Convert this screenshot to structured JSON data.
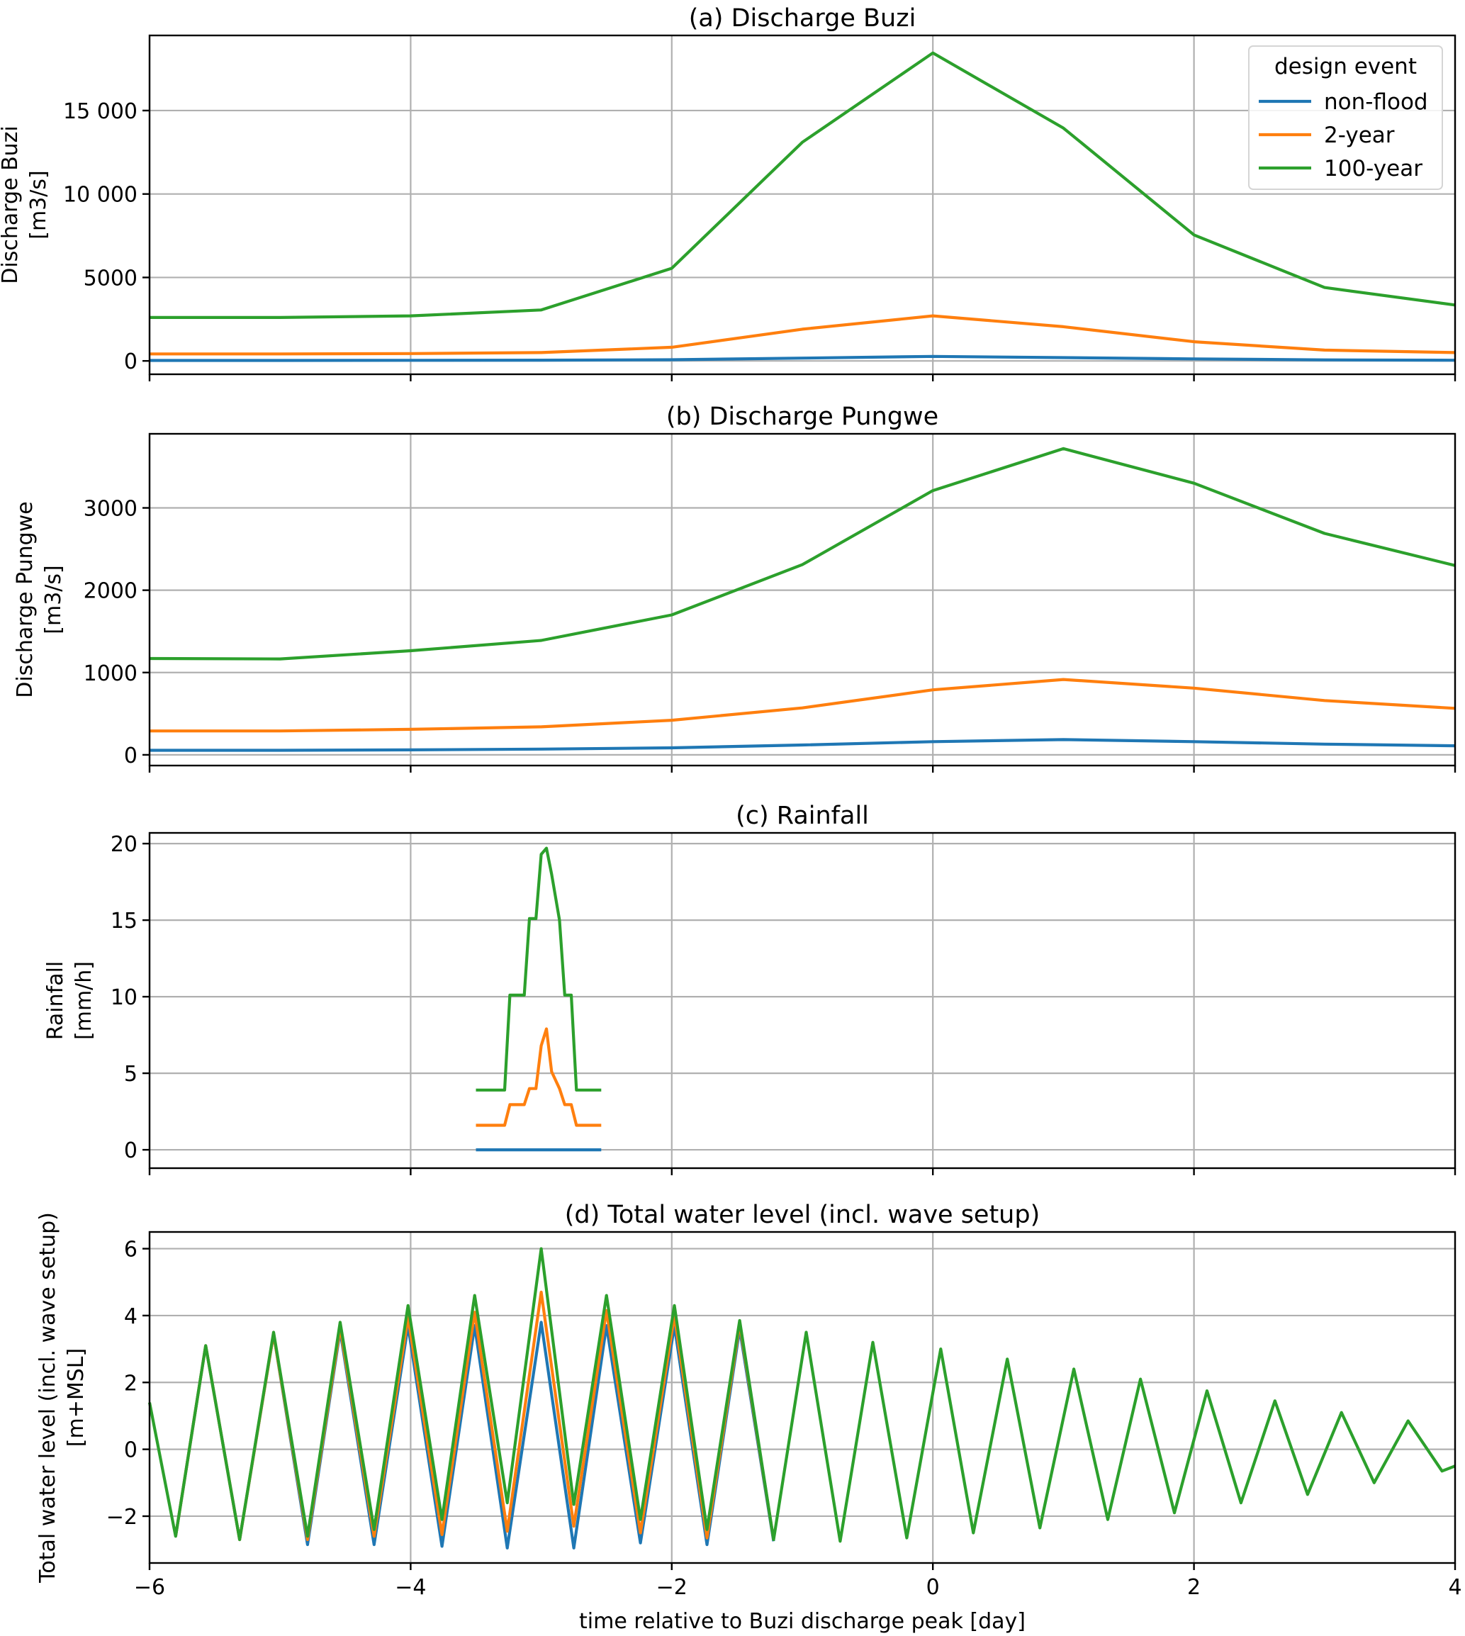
{
  "chart_data": [
    {
      "type": "line",
      "title": "(a) Discharge Buzi",
      "ylabel": "Discharge Buzi\n[m3/s]",
      "xlim": [
        -6,
        4
      ],
      "ylim": [
        -800,
        19500
      ],
      "yticks": [
        0,
        5000,
        10000,
        15000
      ],
      "ytick_labels": [
        "0",
        "5000",
        "10 000",
        "15 000"
      ],
      "xticks": [
        -6,
        -4,
        -2,
        0,
        2,
        4
      ],
      "grid": true,
      "legend": {
        "title": "design event",
        "location": "upper right",
        "entries": [
          "non-flood",
          "2-year",
          "100-year"
        ]
      },
      "series": [
        {
          "name": "non-flood",
          "color": "#1f77b4",
          "x": [
            -6,
            -5,
            -4,
            -3,
            -2,
            -1,
            0,
            1,
            2,
            3,
            4
          ],
          "y": [
            30,
            30,
            35,
            45,
            70,
            170,
            270,
            200,
            120,
            60,
            40
          ]
        },
        {
          "name": "2-year",
          "color": "#ff7f0e",
          "x": [
            -6,
            -5,
            -4,
            -3,
            -2,
            -1,
            0,
            1,
            2,
            3,
            4
          ],
          "y": [
            420,
            420,
            440,
            500,
            820,
            1900,
            2700,
            2050,
            1150,
            650,
            500
          ]
        },
        {
          "name": "100-year",
          "color": "#2ca02c",
          "x": [
            -6,
            -5,
            -4,
            -3,
            -2,
            -1,
            0,
            1,
            2,
            3,
            4
          ],
          "y": [
            2600,
            2600,
            2700,
            3050,
            5550,
            13100,
            18450,
            13950,
            7550,
            4400,
            3350
          ]
        }
      ]
    },
    {
      "type": "line",
      "title": "(b) Discharge Pungwe",
      "ylabel": "Discharge Pungwe\n[m3/s]",
      "xlim": [
        -6,
        4
      ],
      "ylim": [
        -130,
        3900
      ],
      "yticks": [
        0,
        1000,
        2000,
        3000
      ],
      "ytick_labels": [
        "0",
        "1000",
        "2000",
        "3000"
      ],
      "xticks": [
        -6,
        -4,
        -2,
        0,
        2,
        4
      ],
      "grid": true,
      "series": [
        {
          "name": "non-flood",
          "color": "#1f77b4",
          "x": [
            -6,
            -5,
            -4,
            -3,
            -2,
            -1,
            0,
            1,
            2,
            3,
            4
          ],
          "y": [
            55,
            55,
            60,
            70,
            85,
            120,
            160,
            185,
            160,
            130,
            110
          ]
        },
        {
          "name": "2-year",
          "color": "#ff7f0e",
          "x": [
            -6,
            -5,
            -4,
            -3,
            -2,
            -1,
            0,
            1,
            2,
            3,
            4
          ],
          "y": [
            290,
            290,
            310,
            340,
            420,
            570,
            790,
            915,
            810,
            660,
            565
          ]
        },
        {
          "name": "100-year",
          "color": "#2ca02c",
          "x": [
            -6,
            -5,
            -4,
            -3,
            -2,
            -1,
            0,
            1,
            2,
            3,
            4
          ],
          "y": [
            1170,
            1165,
            1265,
            1390,
            1700,
            2310,
            3210,
            3720,
            3300,
            2690,
            2300
          ]
        }
      ]
    },
    {
      "type": "line",
      "title": "(c) Rainfall",
      "ylabel": "Rainfall\n[mm/h]",
      "xlim": [
        -6,
        4
      ],
      "ylim": [
        -1.2,
        20.7
      ],
      "yticks": [
        0,
        5,
        10,
        15,
        20
      ],
      "ytick_labels": [
        "0",
        "5",
        "10",
        "15",
        "20"
      ],
      "xticks": [
        -6,
        -4,
        -2,
        0,
        2,
        4
      ],
      "grid": true,
      "series": [
        {
          "name": "non-flood",
          "color": "#1f77b4",
          "x": [
            -3.5,
            -2.54
          ],
          "y": [
            0,
            0
          ]
        },
        {
          "name": "2-year",
          "color": "#ff7f0e",
          "x": [
            -3.5,
            -3.28,
            -3.24,
            -3.13,
            -3.09,
            -3.04,
            -3.0,
            -2.96,
            -2.92,
            -2.86,
            -2.82,
            -2.77,
            -2.73,
            -2.54
          ],
          "y": [
            1.6,
            1.6,
            2.95,
            2.95,
            4.0,
            4.0,
            6.8,
            7.9,
            5.1,
            4.0,
            2.95,
            2.95,
            1.6,
            1.6
          ]
        },
        {
          "name": "100-year",
          "color": "#2ca02c",
          "x": [
            -3.5,
            -3.28,
            -3.24,
            -3.13,
            -3.09,
            -3.04,
            -3.0,
            -2.96,
            -2.92,
            -2.86,
            -2.82,
            -2.77,
            -2.73,
            -2.54
          ],
          "y": [
            3.9,
            3.9,
            10.1,
            10.1,
            15.1,
            15.1,
            19.3,
            19.7,
            18.0,
            15.0,
            10.1,
            10.1,
            3.9,
            3.9
          ]
        }
      ]
    },
    {
      "type": "line",
      "title": "(d) Total water level (incl. wave setup)",
      "ylabel": "Total water level (incl. wave setup)\n[m+MSL]",
      "xlabel": "time relative to Buzi discharge peak [day]",
      "xlim": [
        -6,
        4
      ],
      "ylim": [
        -3.4,
        6.5
      ],
      "yticks": [
        -2,
        0,
        2,
        4,
        6
      ],
      "ytick_labels": [
        "−2",
        "0",
        "2",
        "4",
        "6"
      ],
      "xticks": [
        -6,
        -4,
        -2,
        0,
        2,
        4
      ],
      "xtick_labels": [
        "−6",
        "−4",
        "−2",
        "0",
        "2",
        "4"
      ],
      "grid": true,
      "series": [
        {
          "name": "non-flood",
          "color": "#1f77b4",
          "x": [
            -5.8,
            -5.57,
            -5.31,
            -5.05,
            -4.79,
            -4.54,
            -4.28,
            -4.02,
            -3.76,
            -3.51,
            -3.26,
            -3.0,
            -2.75,
            -2.5,
            -2.24,
            -1.98,
            -1.73,
            -1.48,
            -1.22
          ],
          "y": [
            -2.6,
            3.1,
            -2.7,
            3.45,
            -2.85,
            3.55,
            -2.85,
            3.7,
            -2.9,
            3.7,
            -2.95,
            3.8,
            -2.95,
            3.7,
            -2.8,
            3.7,
            -2.85,
            3.6,
            -2.75
          ]
        },
        {
          "name": "2-year",
          "color": "#ff7f0e",
          "x": [
            -5.8,
            -5.57,
            -5.31,
            -5.05,
            -4.79,
            -4.54,
            -4.28,
            -4.02,
            -3.76,
            -3.51,
            -3.26,
            -3.0,
            -2.75,
            -2.5,
            -2.24,
            -1.98,
            -1.73,
            -1.48,
            -1.22
          ],
          "y": [
            -2.6,
            3.1,
            -2.7,
            3.45,
            -2.7,
            3.65,
            -2.6,
            3.95,
            -2.55,
            4.1,
            -2.45,
            4.7,
            -2.3,
            4.15,
            -2.5,
            4.0,
            -2.65,
            3.75,
            -2.7
          ]
        },
        {
          "name": "100-year",
          "color": "#2ca02c",
          "x": [
            -6.0,
            -5.8,
            -5.57,
            -5.31,
            -5.05,
            -4.79,
            -4.54,
            -4.28,
            -4.02,
            -3.76,
            -3.51,
            -3.26,
            -3.0,
            -2.75,
            -2.5,
            -2.24,
            -1.98,
            -1.73,
            -1.48,
            -1.22,
            -0.97,
            -0.71,
            -0.46,
            -0.2,
            0.06,
            0.31,
            0.57,
            0.82,
            1.08,
            1.34,
            1.59,
            1.85,
            2.1,
            2.36,
            2.62,
            2.87,
            3.13,
            3.38,
            3.64,
            3.9,
            4.0
          ],
          "y": [
            1.4,
            -2.6,
            3.1,
            -2.7,
            3.5,
            -2.6,
            3.8,
            -2.4,
            4.3,
            -2.1,
            4.6,
            -1.6,
            6.0,
            -1.65,
            4.6,
            -2.1,
            4.3,
            -2.4,
            3.85,
            -2.7,
            3.5,
            -2.75,
            3.2,
            -2.65,
            3.0,
            -2.5,
            2.7,
            -2.35,
            2.4,
            -2.1,
            2.1,
            -1.9,
            1.75,
            -1.6,
            1.45,
            -1.35,
            1.1,
            -1.0,
            0.85,
            -0.65,
            -0.5
          ]
        }
      ]
    }
  ]
}
